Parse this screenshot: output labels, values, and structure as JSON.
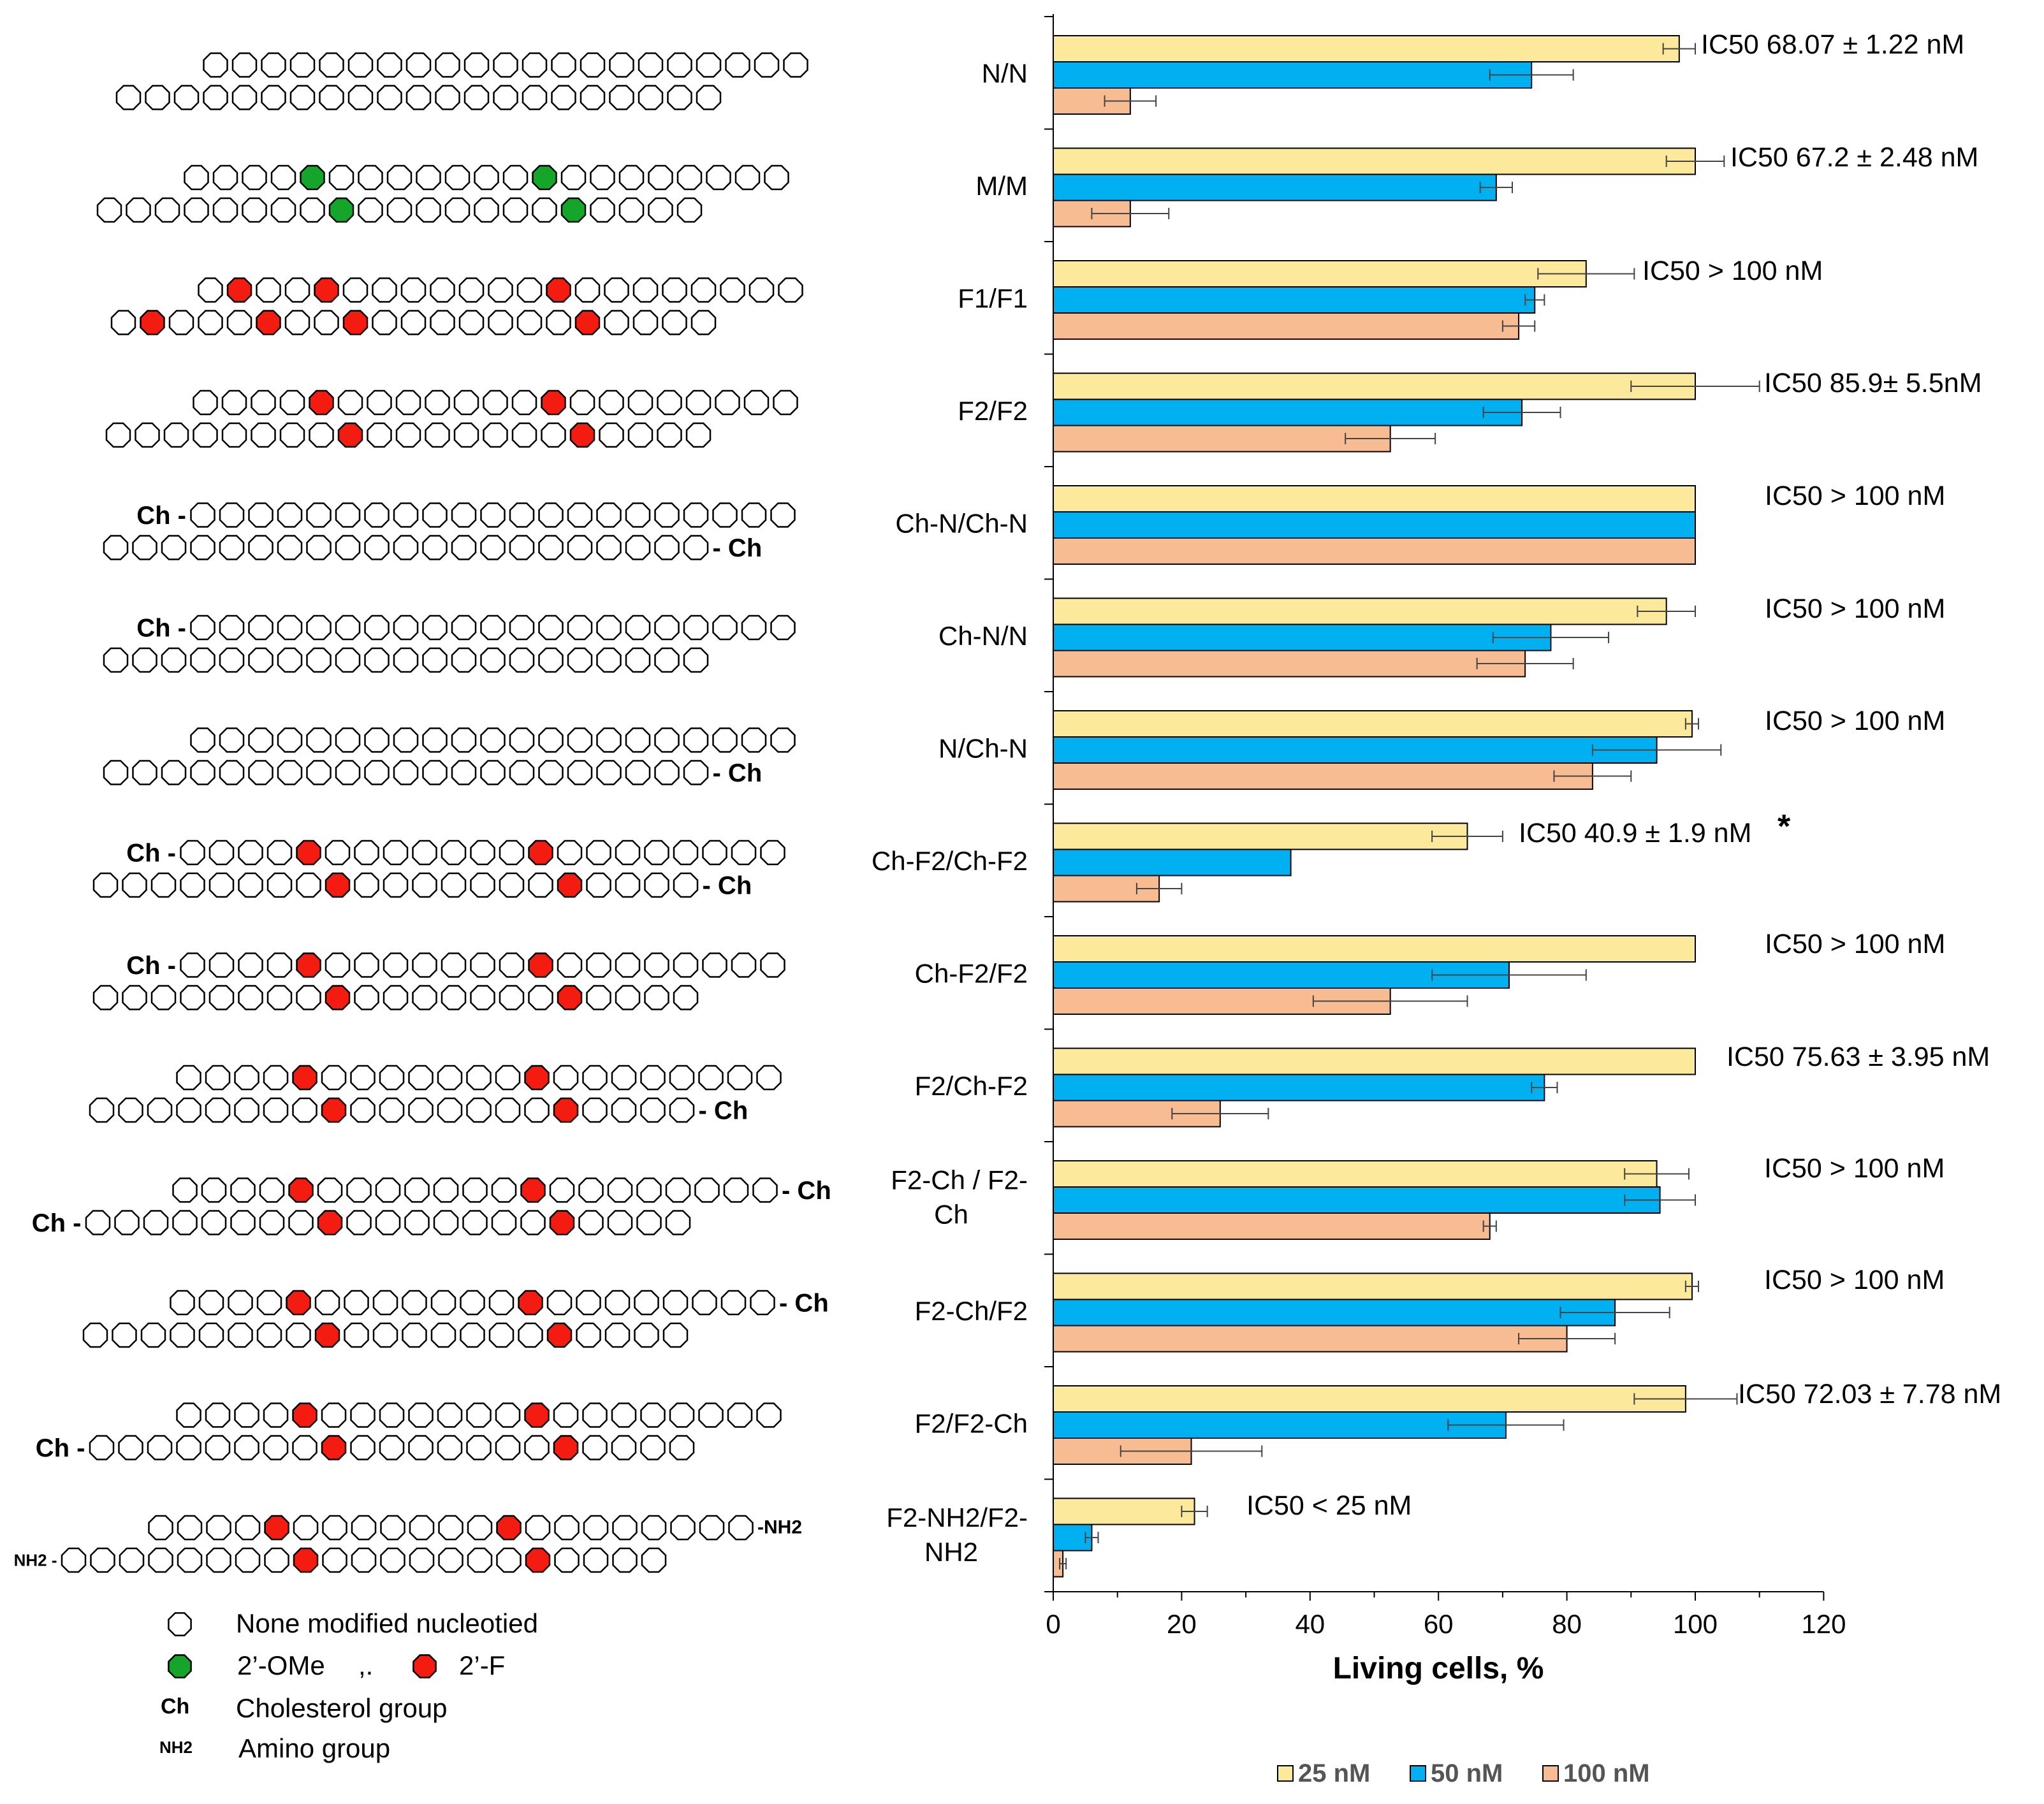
{
  "colors": {
    "c25": "#FDE99B",
    "c50": "#00B0F0",
    "c100": "#F8BC93",
    "outline": "#000000",
    "none_nucleotide": "#FFFFFF",
    "ome": "#15A52A",
    "fluoro": "#F41B10"
  },
  "chart_data": {
    "type": "bar",
    "orientation": "horizontal",
    "xlabel": "Living cells, %",
    "xlim": [
      0,
      120
    ],
    "xticks": [
      0,
      20,
      40,
      60,
      80,
      100,
      120
    ],
    "legend": {
      "placement": "bottom",
      "entries": [
        "25 nM",
        "50 nM",
        "100 nM"
      ]
    },
    "categories": [
      "N/N",
      "M/M",
      "F1/F1",
      "F2/F2",
      "Ch-N/Ch-N",
      "Ch-N/N",
      "N/Ch-N",
      "Ch-F2/Ch-F2",
      "Ch-F2/F2",
      "F2/Ch-F2",
      "F2-Ch / F2-Ch",
      "F2-Ch/F2",
      "F2/F2-Ch",
      "F2-NH2/F2-NH2"
    ],
    "series": [
      {
        "name": "25 nM",
        "values": [
          97.5,
          100,
          83,
          100,
          100,
          95.5,
          99.5,
          64.5,
          100,
          100,
          94,
          99.5,
          98.5,
          22
        ],
        "errors": [
          2.5,
          4.5,
          7.5,
          10,
          0,
          4.5,
          1,
          5.5,
          0,
          0,
          5,
          1,
          8,
          2
        ]
      },
      {
        "name": "50 nM",
        "values": [
          74.5,
          69,
          75,
          73,
          100,
          77.5,
          94,
          37,
          71,
          76.5,
          94.5,
          87.5,
          70.5,
          6
        ],
        "errors": [
          6.5,
          2.5,
          1.5,
          6,
          0,
          9,
          10,
          0,
          12,
          2,
          5.5,
          8.5,
          9,
          1
        ]
      },
      {
        "name": "100 nM",
        "values": [
          12,
          12,
          72.5,
          52.5,
          100,
          73.5,
          84,
          16.5,
          52.5,
          26,
          68,
          80,
          21.5,
          1.5
        ],
        "errors": [
          4,
          6,
          2.5,
          7,
          0,
          7.5,
          6,
          3.5,
          12,
          7.5,
          1,
          7.5,
          11,
          0.5
        ]
      }
    ],
    "annotations": [
      "IC50 68.07 ± 1.22 nM",
      "IC50 67.2 ± 2.48 nM",
      "IC50 > 100 nM",
      "IC50 85.9± 5.5nM",
      "IC50 > 100 nM",
      "IC50 > 100 nM",
      "IC50 > 100 nM",
      "IC50 40.9 ± 1.9 nM",
      "IC50 > 100 nM",
      "IC50 75.63 ± 3.95 nM",
      "IC50 > 100 nM",
      "IC50 > 100 nM",
      "IC50 72.03 ± 7.78 nM",
      "IC50 < 25 nM"
    ],
    "significance_marker": "*"
  },
  "category_label_lines": [
    [
      "N/N"
    ],
    [
      "M/M"
    ],
    [
      "F1/F1"
    ],
    [
      "F2/F2"
    ],
    [
      "Ch-N/Ch-N"
    ],
    [
      "Ch-N/N"
    ],
    [
      "N/Ch-N"
    ],
    [
      "Ch-F2/Ch-F2"
    ],
    [
      "Ch-F2/F2"
    ],
    [
      "F2/Ch-F2"
    ],
    [
      "F2-Ch / F2-",
      "Ch"
    ],
    [
      "F2-Ch/F2"
    ],
    [
      "F2/F2-Ch"
    ],
    [
      "F2-NH2/F2-",
      "NH2"
    ]
  ],
  "duplexes": [
    {
      "top": {
        "n": 21,
        "start": 0,
        "ome": [],
        "f": []
      },
      "bottom": {
        "n": 21,
        "start": -3,
        "ome": [],
        "f": []
      }
    },
    {
      "top": {
        "n": 21,
        "start": 0,
        "ome": [
          4,
          12
        ],
        "f": []
      },
      "bottom": {
        "n": 21,
        "start": -3,
        "ome": [
          8,
          16
        ],
        "f": []
      }
    },
    {
      "top": {
        "n": 21,
        "start": 0,
        "ome": [],
        "f": [
          1,
          4,
          12
        ]
      },
      "bottom": {
        "n": 21,
        "start": -3,
        "ome": [],
        "f": [
          1,
          5,
          8,
          16
        ]
      }
    },
    {
      "top": {
        "n": 21,
        "start": 0,
        "ome": [],
        "f": [
          4,
          12
        ]
      },
      "bottom": {
        "n": 21,
        "start": -3,
        "ome": [],
        "f": [
          8,
          16
        ]
      }
    },
    {
      "top": {
        "n": 21,
        "start": 0,
        "ome": [],
        "f": [],
        "left": "Ch"
      },
      "bottom": {
        "n": 21,
        "start": -3,
        "ome": [],
        "f": [],
        "right": "Ch"
      }
    },
    {
      "top": {
        "n": 21,
        "start": 0,
        "ome": [],
        "f": [],
        "left": "Ch"
      },
      "bottom": {
        "n": 21,
        "start": -3,
        "ome": [],
        "f": []
      }
    },
    {
      "top": {
        "n": 21,
        "start": 0,
        "ome": [],
        "f": []
      },
      "bottom": {
        "n": 21,
        "start": -3,
        "ome": [],
        "f": [],
        "right": "Ch"
      }
    },
    {
      "top": {
        "n": 21,
        "start": 0,
        "ome": [],
        "f": [
          4,
          12
        ],
        "left": "Ch"
      },
      "bottom": {
        "n": 21,
        "start": -3,
        "ome": [],
        "f": [
          8,
          16
        ],
        "right": "Ch"
      }
    },
    {
      "top": {
        "n": 21,
        "start": 0,
        "ome": [],
        "f": [
          4,
          12
        ],
        "left": "Ch"
      },
      "bottom": {
        "n": 21,
        "start": -3,
        "ome": [],
        "f": [
          8,
          16
        ]
      }
    },
    {
      "top": {
        "n": 21,
        "start": 0,
        "ome": [],
        "f": [
          4,
          12
        ]
      },
      "bottom": {
        "n": 21,
        "start": -3,
        "ome": [],
        "f": [
          8,
          16
        ],
        "right": "Ch"
      }
    },
    {
      "top": {
        "n": 21,
        "start": 0,
        "ome": [],
        "f": [
          4,
          12
        ],
        "right": "Ch"
      },
      "bottom": {
        "n": 21,
        "start": -3,
        "ome": [],
        "f": [
          8,
          16
        ],
        "left": "Ch"
      }
    },
    {
      "top": {
        "n": 21,
        "start": 0,
        "ome": [],
        "f": [
          4,
          12
        ],
        "right": "Ch"
      },
      "bottom": {
        "n": 21,
        "start": -3,
        "ome": [],
        "f": [
          8,
          16
        ]
      }
    },
    {
      "top": {
        "n": 21,
        "start": 0,
        "ome": [],
        "f": [
          4,
          12
        ]
      },
      "bottom": {
        "n": 21,
        "start": -3,
        "ome": [],
        "f": [
          8,
          16
        ],
        "left": "Ch"
      }
    },
    {
      "top": {
        "n": 21,
        "start": 0,
        "ome": [],
        "f": [
          4,
          12
        ],
        "right": "NH2"
      },
      "bottom": {
        "n": 21,
        "start": -3,
        "ome": [],
        "f": [
          8,
          16
        ],
        "left": "NH2"
      }
    }
  ],
  "scheme_legend": {
    "none": "None modified nucleotied",
    "ome": "2’-OMe",
    "sep": ",.",
    "f": "2’-F",
    "ch_symbol": "Ch",
    "ch": "Cholesterol group",
    "nh2_symbol": "NH2",
    "nh2": "Amino group"
  }
}
